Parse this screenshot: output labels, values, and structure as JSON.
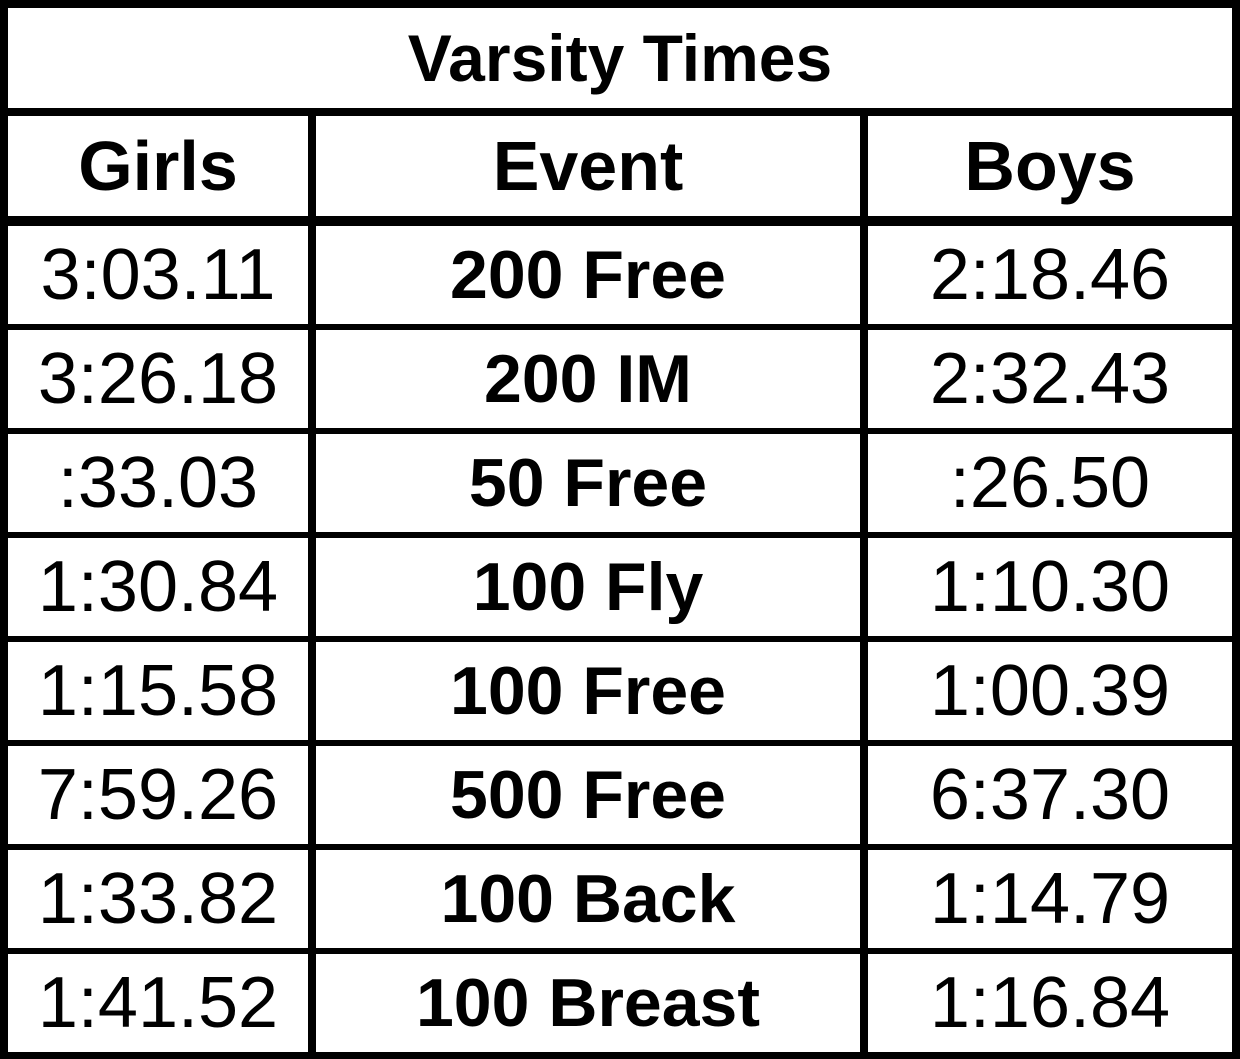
{
  "title": "Varsity Times",
  "table": {
    "header": [
      "Girls",
      "Event",
      "Boys"
    ],
    "rows": [
      [
        "3:03.11",
        "200 Free",
        "2:18.46"
      ],
      [
        "3:26.18",
        "200 IM",
        "2:32.43"
      ],
      [
        ":33.03",
        "50 Free",
        ":26.50"
      ],
      [
        "1:30.84",
        "100 Fly",
        "1:10.30"
      ],
      [
        "1:15.58",
        "100 Free",
        "1:00.39"
      ],
      [
        "7:59.26",
        "500 Free",
        "6:37.30"
      ],
      [
        "1:33.82",
        "100 Back",
        "1:14.79"
      ],
      [
        "1:41.52",
        "100 Breast",
        "1:16.84"
      ]
    ]
  }
}
